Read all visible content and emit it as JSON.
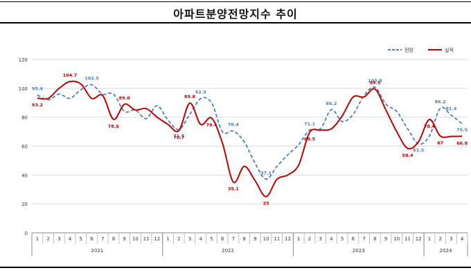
{
  "title": "아파트분양전망지수 추이",
  "chart_data": {
    "type": "line",
    "ylim": [
      0,
      120
    ],
    "yticks": [
      0,
      20,
      40,
      60,
      80,
      100,
      120
    ],
    "grid": "horizontal",
    "legend_position": "top-right",
    "months": [
      "1",
      "2",
      "3",
      "4",
      "5",
      "6",
      "7",
      "8",
      "9",
      "10",
      "11",
      "12",
      "1",
      "2",
      "3",
      "4",
      "5",
      "6",
      "7",
      "8",
      "9",
      "10",
      "11",
      "12",
      "1",
      "2",
      "3",
      "4",
      "5",
      "6",
      "7",
      "8",
      "9",
      "10",
      "11",
      "12",
      "1",
      "2",
      "3",
      "4"
    ],
    "years": [
      {
        "label": "2021",
        "count": 12
      },
      {
        "label": "2022",
        "count": 12
      },
      {
        "label": "2023",
        "count": 12
      },
      {
        "label": "2024",
        "count": 4
      }
    ],
    "series": [
      {
        "name": "전망",
        "color": "#4a7ebb",
        "style": "dashed",
        "values": [
          95.4,
          92,
          96,
          93,
          99,
          102.5,
          96,
          96,
          84,
          85,
          79,
          88,
          78,
          71.5,
          82,
          92.9,
          90,
          70,
          70.4,
          63,
          48,
          37.1,
          46,
          54,
          61,
          71.1,
          72,
          85.2,
          77,
          82,
          95,
          100.8,
          89,
          84,
          72,
          61.5,
          67,
          86.2,
          81.4,
          75.5
        ]
      },
      {
        "name": "실적",
        "color": "#c00000",
        "style": "solid",
        "values": [
          93.2,
          93,
          100,
          104.7,
          103,
          93,
          95,
          78.5,
          89.0,
          85,
          86,
          80,
          75,
          70.7,
          89.8,
          75,
          79.4,
          62,
          35.1,
          46,
          36,
          25,
          37,
          40,
          47,
          69.5,
          71,
          72,
          81,
          94,
          94,
          99.5,
          85,
          70,
          58.4,
          63,
          78.4,
          67,
          66.7,
          66.8
        ]
      }
    ],
    "data_labels": [
      {
        "series": 0,
        "index": 0,
        "text": "95.4"
      },
      {
        "series": 0,
        "index": 5,
        "text": "102.5"
      },
      {
        "series": 0,
        "index": 13,
        "text": "71.5"
      },
      {
        "series": 0,
        "index": 15,
        "text": "92.9"
      },
      {
        "series": 0,
        "index": 18,
        "text": "70.4"
      },
      {
        "series": 0,
        "index": 21,
        "text": "37.1"
      },
      {
        "series": 0,
        "index": 25,
        "text": "71.1"
      },
      {
        "series": 0,
        "index": 27,
        "text": "85.2"
      },
      {
        "series": 0,
        "index": 31,
        "text": "100.8"
      },
      {
        "series": 0,
        "index": 35,
        "text": "61.5"
      },
      {
        "series": 0,
        "index": 37,
        "text": "86.2"
      },
      {
        "series": 0,
        "index": 38,
        "text": "81.4"
      },
      {
        "series": 0,
        "index": 39,
        "text": "75.5"
      },
      {
        "series": 1,
        "index": 0,
        "text": "93.2"
      },
      {
        "series": 1,
        "index": 3,
        "text": "104.7"
      },
      {
        "series": 1,
        "index": 7,
        "text": "78.5"
      },
      {
        "series": 1,
        "index": 8,
        "text": "89.0"
      },
      {
        "series": 1,
        "index": 13,
        "text": "70.7"
      },
      {
        "series": 1,
        "index": 14,
        "text": "89.8"
      },
      {
        "series": 1,
        "index": 16,
        "text": "79.4"
      },
      {
        "series": 1,
        "index": 18,
        "text": "35.1"
      },
      {
        "series": 1,
        "index": 21,
        "text": "25"
      },
      {
        "series": 1,
        "index": 25,
        "text": "69.5"
      },
      {
        "series": 1,
        "index": 31,
        "text": "99.5"
      },
      {
        "series": 1,
        "index": 34,
        "text": "58.4"
      },
      {
        "series": 1,
        "index": 36,
        "text": "78.4"
      },
      {
        "series": 1,
        "index": 37,
        "text": "67"
      },
      {
        "series": 1,
        "index": 39,
        "text": "66.8"
      }
    ]
  }
}
